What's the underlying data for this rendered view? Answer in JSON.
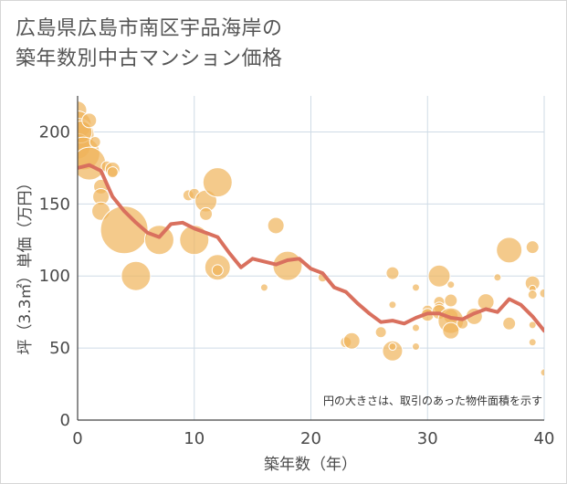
{
  "title_lines": [
    "広島県広島市南区宇品海岸の",
    "築年数別中古マンション価格"
  ],
  "colors": {
    "bubble": "#f0b45a",
    "line": "#d9705e",
    "grid": "#cfdbe6",
    "axis": "#444444"
  },
  "chart_data": {
    "type": "scatter",
    "title": "広島県広島市南区宇品海岸の築年数別中古マンション価格",
    "xlabel": "築年数（年）",
    "ylabel": "坪（3.3㎡）単価（万円）",
    "xlim": [
      0,
      40
    ],
    "ylim": [
      0,
      225
    ],
    "xticks": [
      0,
      10,
      20,
      30,
      40
    ],
    "yticks": [
      0,
      50,
      100,
      150,
      200
    ],
    "grid": true,
    "note": "円の大きさは、取引のあった物件面積を示す",
    "bubbles": [
      {
        "x": 0,
        "y": 215,
        "s": 10
      },
      {
        "x": 0,
        "y": 205,
        "s": 15
      },
      {
        "x": 0,
        "y": 198,
        "s": 18
      },
      {
        "x": 0,
        "y": 190,
        "s": 14
      },
      {
        "x": 0.3,
        "y": 200,
        "s": 12
      },
      {
        "x": 0.5,
        "y": 185,
        "s": 18
      },
      {
        "x": 1,
        "y": 208,
        "s": 8
      },
      {
        "x": 1,
        "y": 178,
        "s": 18
      },
      {
        "x": 1.5,
        "y": 193,
        "s": 6
      },
      {
        "x": 2,
        "y": 162,
        "s": 8
      },
      {
        "x": 2,
        "y": 155,
        "s": 9
      },
      {
        "x": 2,
        "y": 145,
        "s": 10
      },
      {
        "x": 2.5,
        "y": 176,
        "s": 6
      },
      {
        "x": 3,
        "y": 174,
        "s": 8
      },
      {
        "x": 3,
        "y": 172,
        "s": 6
      },
      {
        "x": 4,
        "y": 132,
        "s": 26
      },
      {
        "x": 5,
        "y": 100,
        "s": 16
      },
      {
        "x": 7,
        "y": 125,
        "s": 16
      },
      {
        "x": 9.5,
        "y": 156,
        "s": 6
      },
      {
        "x": 10,
        "y": 157,
        "s": 6
      },
      {
        "x": 10,
        "y": 125,
        "s": 16
      },
      {
        "x": 11,
        "y": 152,
        "s": 12
      },
      {
        "x": 11,
        "y": 143,
        "s": 7
      },
      {
        "x": 12,
        "y": 165,
        "s": 16
      },
      {
        "x": 12,
        "y": 106,
        "s": 14
      },
      {
        "x": 12,
        "y": 104,
        "s": 6
      },
      {
        "x": 16,
        "y": 92,
        "s": 4
      },
      {
        "x": 17,
        "y": 135,
        "s": 9
      },
      {
        "x": 18,
        "y": 107,
        "s": 16
      },
      {
        "x": 21,
        "y": 99,
        "s": 5
      },
      {
        "x": 23,
        "y": 54,
        "s": 6
      },
      {
        "x": 23.5,
        "y": 55,
        "s": 9
      },
      {
        "x": 26,
        "y": 61,
        "s": 6
      },
      {
        "x": 27,
        "y": 102,
        "s": 7
      },
      {
        "x": 27,
        "y": 80,
        "s": 4
      },
      {
        "x": 27,
        "y": 48,
        "s": 11
      },
      {
        "x": 27,
        "y": 51,
        "s": 4
      },
      {
        "x": 29,
        "y": 92,
        "s": 4
      },
      {
        "x": 29,
        "y": 64,
        "s": 4
      },
      {
        "x": 29,
        "y": 51,
        "s": 4
      },
      {
        "x": 30,
        "y": 76,
        "s": 6
      },
      {
        "x": 30,
        "y": 73,
        "s": 7
      },
      {
        "x": 31,
        "y": 100,
        "s": 12
      },
      {
        "x": 31,
        "y": 82,
        "s": 6
      },
      {
        "x": 31,
        "y": 78,
        "s": 6
      },
      {
        "x": 31,
        "y": 75,
        "s": 8
      },
      {
        "x": 32,
        "y": 94,
        "s": 4
      },
      {
        "x": 32,
        "y": 83,
        "s": 7
      },
      {
        "x": 32,
        "y": 72,
        "s": 8
      },
      {
        "x": 32,
        "y": 69,
        "s": 14
      },
      {
        "x": 32,
        "y": 62,
        "s": 9
      },
      {
        "x": 33,
        "y": 67,
        "s": 6
      },
      {
        "x": 34,
        "y": 72,
        "s": 9
      },
      {
        "x": 35,
        "y": 82,
        "s": 9
      },
      {
        "x": 36,
        "y": 99,
        "s": 4
      },
      {
        "x": 37,
        "y": 118,
        "s": 14
      },
      {
        "x": 37,
        "y": 67,
        "s": 7
      },
      {
        "x": 39,
        "y": 120,
        "s": 7
      },
      {
        "x": 39,
        "y": 95,
        "s": 8
      },
      {
        "x": 39,
        "y": 91,
        "s": 4
      },
      {
        "x": 39,
        "y": 87,
        "s": 5
      },
      {
        "x": 39,
        "y": 66,
        "s": 4
      },
      {
        "x": 39,
        "y": 54,
        "s": 4
      },
      {
        "x": 40,
        "y": 88,
        "s": 5
      },
      {
        "x": 40,
        "y": 33,
        "s": 4
      }
    ],
    "trend": {
      "x": [
        0,
        1,
        2,
        3,
        4,
        5,
        6,
        7,
        8,
        9,
        10,
        11,
        12,
        13,
        14,
        15,
        16,
        17,
        18,
        19,
        20,
        21,
        22,
        23,
        24,
        25,
        26,
        27,
        28,
        29,
        30,
        31,
        32,
        33,
        34,
        35,
        36,
        37,
        38,
        39,
        40
      ],
      "y": [
        175,
        177,
        173,
        155,
        145,
        137,
        130,
        127,
        136,
        137,
        133,
        130,
        127,
        116,
        106,
        112,
        110,
        108,
        111,
        112,
        105,
        102,
        92,
        89,
        81,
        74,
        68,
        69,
        67,
        71,
        74,
        74,
        71,
        70,
        74,
        77,
        75,
        84,
        80,
        72,
        62
      ]
    }
  }
}
